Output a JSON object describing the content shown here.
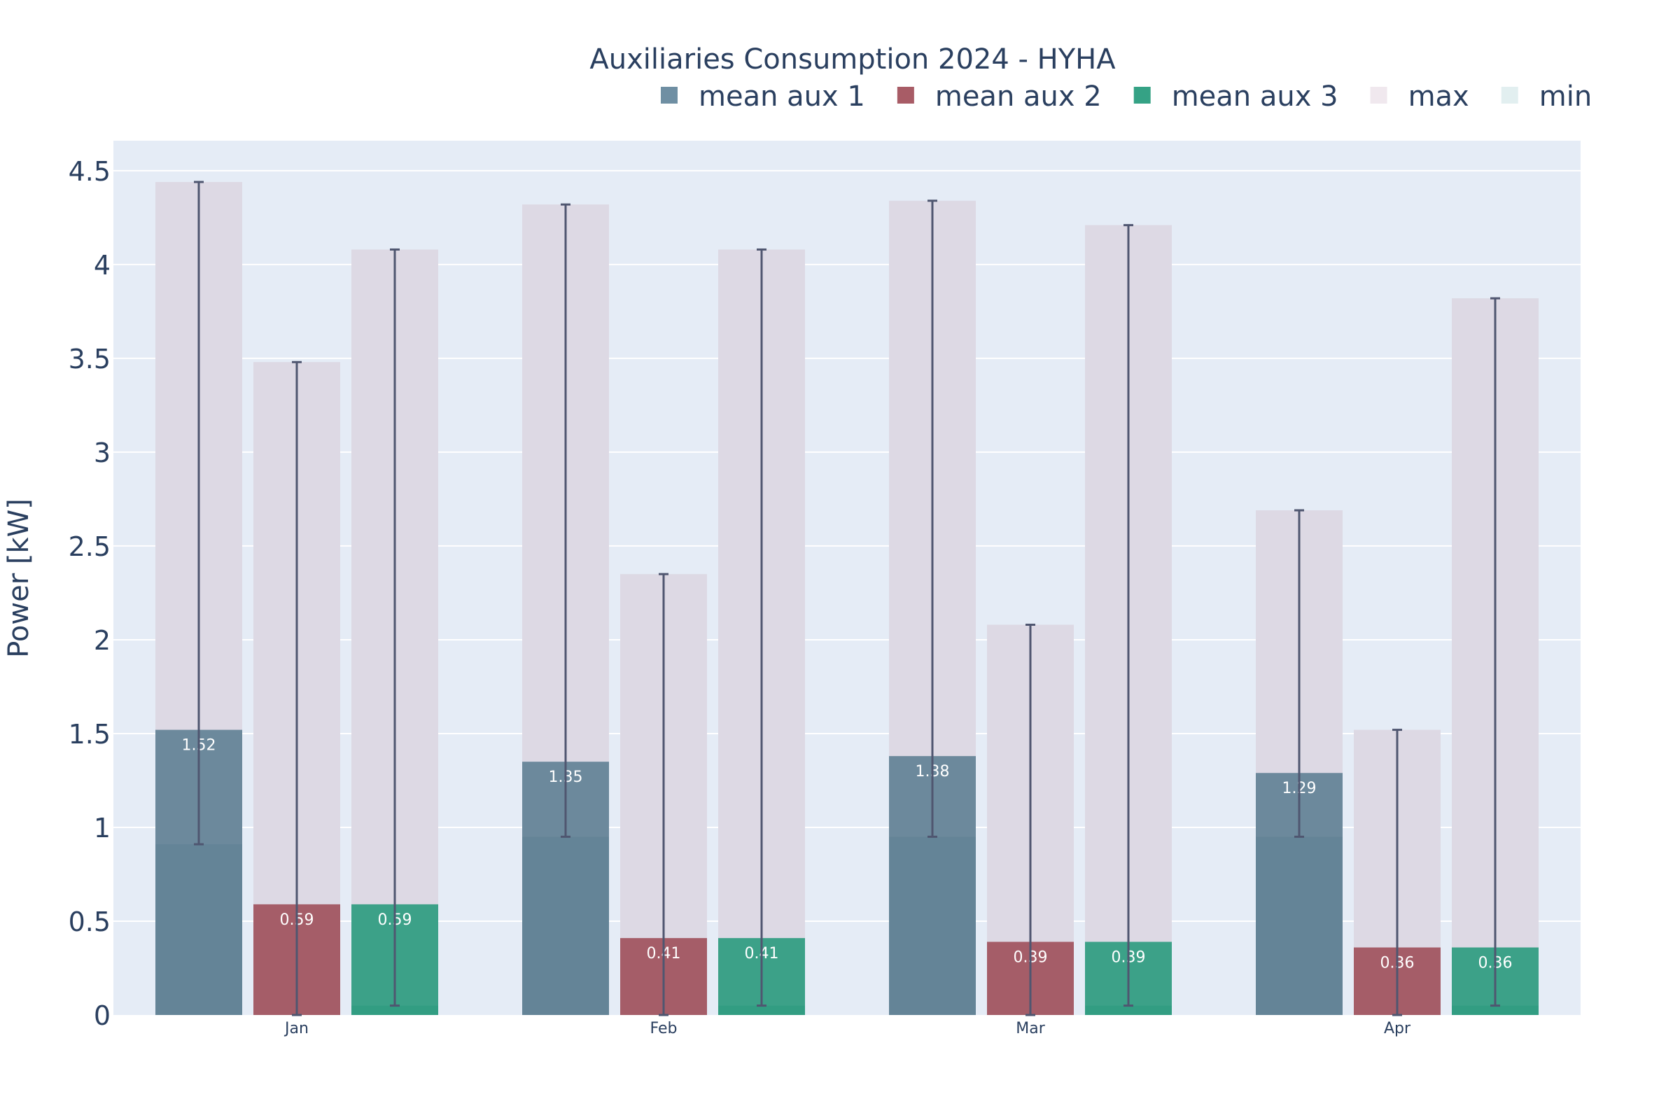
{
  "chart_data": {
    "type": "bar",
    "title": "Auxiliaries Consumption 2024 - HYHA",
    "xlabel": "",
    "ylabel": "Power [kW]",
    "ylim": [
      0,
      4.66
    ],
    "yticks": [
      0,
      0.5,
      1,
      1.5,
      2,
      2.5,
      3,
      3.5,
      4,
      4.5
    ],
    "ytick_labels": [
      "0",
      "0.5",
      "1",
      "1.5",
      "2",
      "2.5",
      "3",
      "3.5",
      "4",
      "4.5"
    ],
    "categories": [
      "Jan",
      "Feb",
      "Mar",
      "Apr"
    ],
    "legend_placement": "top-right",
    "grid": true,
    "series": [
      {
        "name": "mean aux 1",
        "color": "#5f7f94",
        "mean": [
          1.52,
          1.35,
          1.38,
          1.29
        ],
        "labels": [
          "1.52",
          "1.35",
          "1.38",
          "1.29"
        ],
        "max": [
          4.44,
          4.32,
          4.34,
          2.69
        ],
        "min": [
          0.91,
          0.95,
          0.95,
          0.95
        ]
      },
      {
        "name": "mean aux 2",
        "color": "#9e4f5a",
        "mean": [
          0.59,
          0.41,
          0.39,
          0.36
        ],
        "labels": [
          "0.59",
          "0.41",
          "0.39",
          "0.36"
        ],
        "max": [
          3.48,
          2.35,
          2.08,
          1.52
        ],
        "min": [
          0.0,
          0.0,
          0.0,
          0.0
        ]
      },
      {
        "name": "mean aux 3",
        "color": "#2a9a7d",
        "mean": [
          0.59,
          0.41,
          0.39,
          0.36
        ],
        "labels": [
          "0.59",
          "0.41",
          "0.39",
          "0.36"
        ],
        "max": [
          4.08,
          4.08,
          4.21,
          3.82
        ],
        "min": [
          0.05,
          0.05,
          0.05,
          0.05
        ]
      }
    ],
    "legend": [
      {
        "name": "mean aux 1",
        "color": "#6f8fa3"
      },
      {
        "name": "mean aux 2",
        "color": "#a85c66"
      },
      {
        "name": "mean aux 3",
        "color": "#35a285"
      },
      {
        "name": "max",
        "color": "#f0e8ee"
      },
      {
        "name": "min",
        "color": "#e2eff0"
      }
    ],
    "colors": {
      "plot_bg": "#e5ecf6",
      "grid": "#ffffff",
      "max_bar": "#ddd9e4",
      "error_bar": "#4f5670",
      "text": "#2a3f5f"
    }
  }
}
